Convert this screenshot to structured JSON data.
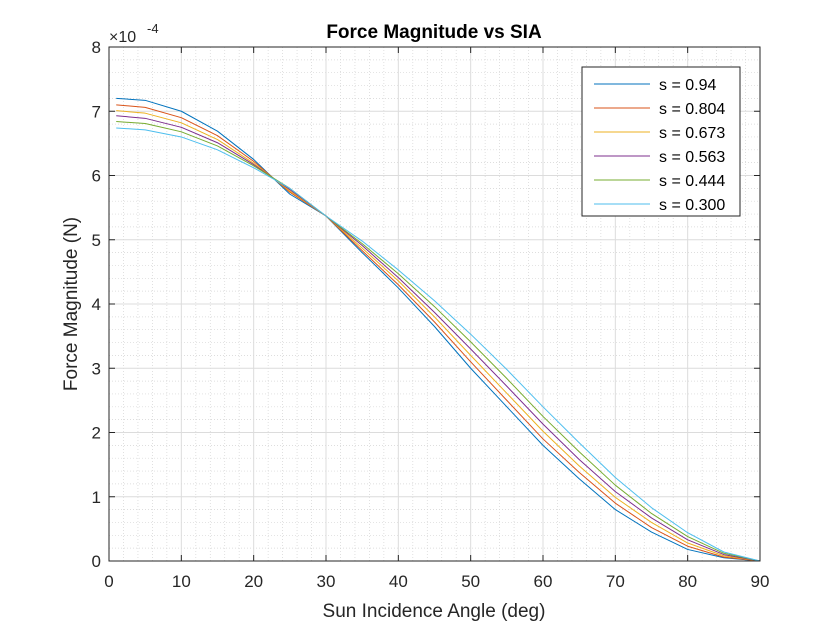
{
  "chart_data": {
    "type": "line",
    "title": "Force Magnitude vs SIA",
    "xlabel": "Sun Incidence Angle (deg)",
    "ylabel": "Force Magnitude (N)",
    "y_exponent": {
      "base": "×10",
      "power": "-4"
    },
    "xlim": [
      0,
      90
    ],
    "ylim": [
      0,
      8
    ],
    "xticks": [
      0,
      10,
      20,
      30,
      40,
      50,
      60,
      70,
      80,
      90
    ],
    "yticks": [
      0,
      1,
      2,
      3,
      4,
      5,
      6,
      7,
      8
    ],
    "grid": true,
    "minor_grid": true,
    "legend_position": "top-right",
    "series": [
      {
        "name": "s = 0.94",
        "color": "#0072BD",
        "x": [
          1,
          5,
          10,
          15,
          20,
          25,
          30,
          35,
          40,
          45,
          50,
          55,
          60,
          65,
          70,
          75,
          80,
          85,
          90
        ],
        "y": [
          7.2,
          7.17,
          7.0,
          6.69,
          6.25,
          5.71,
          5.37,
          4.8,
          4.25,
          3.65,
          3.0,
          2.4,
          1.8,
          1.28,
          0.8,
          0.45,
          0.18,
          0.05,
          0.0
        ]
      },
      {
        "name": "s = 0.804",
        "color": "#D95319",
        "x": [
          1,
          5,
          10,
          15,
          20,
          25,
          30,
          35,
          40,
          45,
          50,
          55,
          60,
          65,
          70,
          75,
          80,
          85,
          90
        ],
        "y": [
          7.1,
          7.06,
          6.9,
          6.62,
          6.22,
          5.74,
          5.37,
          4.83,
          4.3,
          3.72,
          3.1,
          2.5,
          1.9,
          1.38,
          0.9,
          0.52,
          0.23,
          0.06,
          0.0
        ]
      },
      {
        "name": "s = 0.673",
        "color": "#EDB120",
        "x": [
          1,
          5,
          10,
          15,
          20,
          25,
          30,
          35,
          40,
          45,
          50,
          55,
          60,
          65,
          70,
          75,
          80,
          85,
          90
        ],
        "y": [
          7.01,
          6.97,
          6.82,
          6.56,
          6.19,
          5.76,
          5.37,
          4.87,
          4.36,
          3.8,
          3.2,
          2.61,
          2.02,
          1.48,
          0.99,
          0.6,
          0.28,
          0.08,
          0.0
        ]
      },
      {
        "name": "s = 0.563",
        "color": "#7E2F8E",
        "x": [
          1,
          5,
          10,
          15,
          20,
          25,
          30,
          35,
          40,
          45,
          50,
          55,
          60,
          65,
          70,
          75,
          80,
          85,
          90
        ],
        "y": [
          6.93,
          6.89,
          6.75,
          6.51,
          6.17,
          5.78,
          5.37,
          4.91,
          4.41,
          3.87,
          3.3,
          2.72,
          2.13,
          1.58,
          1.08,
          0.67,
          0.33,
          0.1,
          0.0
        ]
      },
      {
        "name": "s = 0.444",
        "color": "#77AC30",
        "x": [
          1,
          5,
          10,
          15,
          20,
          25,
          30,
          35,
          40,
          45,
          50,
          55,
          60,
          65,
          70,
          75,
          80,
          85,
          90
        ],
        "y": [
          6.84,
          6.81,
          6.68,
          6.46,
          6.15,
          5.8,
          5.37,
          4.94,
          4.47,
          3.96,
          3.41,
          2.84,
          2.25,
          1.7,
          1.18,
          0.74,
          0.38,
          0.12,
          0.0
        ]
      },
      {
        "name": "s = 0.300",
        "color": "#4DBEEE",
        "x": [
          1,
          5,
          10,
          15,
          20,
          25,
          30,
          35,
          40,
          45,
          50,
          55,
          60,
          65,
          70,
          75,
          80,
          85,
          90
        ],
        "y": [
          6.74,
          6.71,
          6.6,
          6.4,
          6.12,
          5.8,
          5.37,
          4.98,
          4.53,
          4.05,
          3.53,
          2.98,
          2.4,
          1.84,
          1.3,
          0.83,
          0.44,
          0.14,
          0.0
        ]
      }
    ]
  }
}
